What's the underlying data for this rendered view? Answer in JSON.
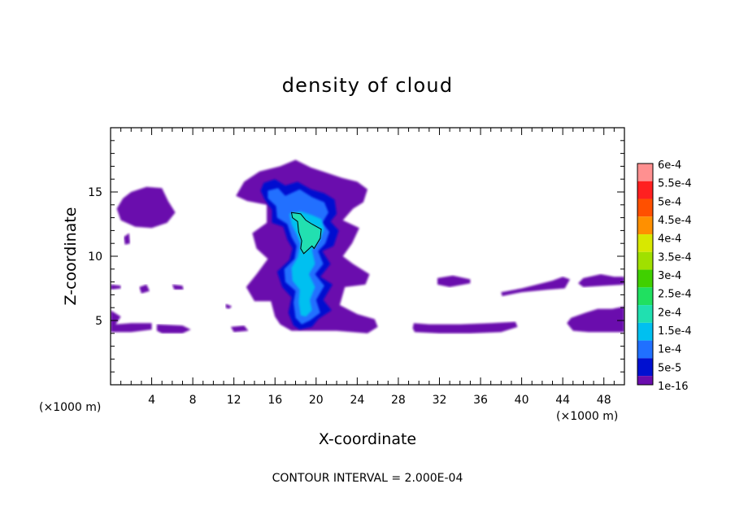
{
  "chart_data": {
    "type": "heatmap",
    "title": "density of cloud",
    "xlabel": "X-coordinate",
    "ylabel": "Z-coordinate",
    "x_unit_left": "(×1000 m)",
    "x_unit_right": "(×1000 m)",
    "footer": "CONTOUR INTERVAL = 2.000E-04",
    "xlim": [
      0,
      50
    ],
    "ylim": [
      0,
      20
    ],
    "x_ticks": [
      4,
      8,
      12,
      16,
      20,
      24,
      28,
      32,
      36,
      40,
      44,
      48
    ],
    "y_ticks": [
      5,
      10,
      15
    ],
    "grid": false,
    "colorbar": {
      "labels": [
        "6e-4",
        "5.5e-4",
        "5e-4",
        "4.5e-4",
        "4e-4",
        "3.5e-4",
        "3e-4",
        "2.5e-4",
        "2e-4",
        "1.5e-4",
        "1e-4",
        "5e-5",
        "1e-16"
      ],
      "colors": [
        "#ff9090",
        "#ff2020",
        "#ff5000",
        "#ff9000",
        "#d8e800",
        "#a0e000",
        "#40d000",
        "#20e060",
        "#20e0b0",
        "#00c0f0",
        "#2070ff",
        "#0010d0",
        "#6a0dad"
      ]
    },
    "regions": [
      {
        "level": "1e-16",
        "description": "purple low-density cloud patches",
        "points": [
          [
            1.2,
            14.5
          ],
          [
            2,
            15
          ],
          [
            3.5,
            15.4
          ],
          [
            5,
            15.3
          ],
          [
            5.6,
            14.3
          ],
          [
            6.3,
            13.4
          ],
          [
            5.5,
            12.6
          ],
          [
            4,
            12.2
          ],
          [
            2.4,
            12.3
          ],
          [
            1,
            12.8
          ],
          [
            0.6,
            13.7
          ]
        ]
      },
      {
        "level": "1e-16",
        "points": [
          [
            12.2,
            14.7
          ],
          [
            13,
            15.8
          ],
          [
            14.5,
            16.6
          ],
          [
            16.5,
            17
          ],
          [
            18,
            17.5
          ],
          [
            19.5,
            16.9
          ],
          [
            21,
            16.5
          ],
          [
            22.5,
            16.1
          ],
          [
            24,
            15.8
          ],
          [
            25,
            15.2
          ],
          [
            24.6,
            14.2
          ],
          [
            23.6,
            13.7
          ],
          [
            22.6,
            12.8
          ],
          [
            24.2,
            12.2
          ],
          [
            23.5,
            11
          ],
          [
            22.6,
            10
          ],
          [
            23.6,
            9.4
          ],
          [
            25.2,
            8.6
          ],
          [
            24.8,
            7.8
          ],
          [
            22.8,
            7.6
          ],
          [
            22.3,
            6.2
          ],
          [
            24,
            5.5
          ],
          [
            25.7,
            5.1
          ],
          [
            26,
            4.5
          ],
          [
            25,
            4
          ],
          [
            22,
            4.2
          ],
          [
            20,
            4.2
          ],
          [
            17.6,
            4.2
          ],
          [
            16.5,
            4.7
          ],
          [
            16,
            5.3
          ],
          [
            15.6,
            6.5
          ],
          [
            14,
            6.5
          ],
          [
            13.2,
            7.6
          ],
          [
            14.2,
            8.6
          ],
          [
            15.3,
            9.8
          ],
          [
            14.2,
            10.6
          ],
          [
            13.8,
            11.8
          ],
          [
            15.2,
            12.6
          ],
          [
            15.2,
            14
          ],
          [
            13.3,
            14.3
          ]
        ]
      },
      {
        "level": "1e-16",
        "points": [
          [
            0,
            5.8
          ],
          [
            1,
            5.3
          ],
          [
            0.5,
            4.7
          ],
          [
            2,
            4.8
          ],
          [
            4,
            4.8
          ],
          [
            4,
            4.3
          ],
          [
            2,
            4.1
          ],
          [
            0,
            4.1
          ]
        ]
      },
      {
        "level": "1e-16",
        "points": [
          [
            4.5,
            4.7
          ],
          [
            7,
            4.6
          ],
          [
            7.8,
            4.3
          ],
          [
            7,
            4
          ],
          [
            5,
            4
          ],
          [
            4.5,
            4.2
          ]
        ]
      },
      {
        "level": "1e-16",
        "points": [
          [
            11.7,
            4.5
          ],
          [
            13,
            4.6
          ],
          [
            13.4,
            4.2
          ],
          [
            12,
            4.1
          ]
        ]
      },
      {
        "level": "1e-16",
        "points": [
          [
            29.5,
            4.8
          ],
          [
            31,
            4.7
          ],
          [
            34,
            4.7
          ],
          [
            37,
            4.8
          ],
          [
            39.4,
            4.9
          ],
          [
            39.6,
            4.5
          ],
          [
            38,
            4.1
          ],
          [
            35,
            4
          ],
          [
            32,
            4
          ],
          [
            29.6,
            4.1
          ],
          [
            29.4,
            4.4
          ]
        ]
      },
      {
        "level": "1e-16",
        "points": [
          [
            31.8,
            8.3
          ],
          [
            33.3,
            8.5
          ],
          [
            35,
            8.2
          ],
          [
            35,
            7.9
          ],
          [
            33,
            7.6
          ],
          [
            31.8,
            7.8
          ]
        ]
      },
      {
        "level": "1e-16",
        "points": [
          [
            38,
            7.2
          ],
          [
            40,
            7.5
          ],
          [
            41.5,
            7.8
          ],
          [
            43,
            8.1
          ],
          [
            44,
            8.4
          ],
          [
            44.7,
            8.2
          ],
          [
            44.2,
            7.5
          ],
          [
            42.5,
            7.4
          ],
          [
            40,
            7.2
          ],
          [
            38.1,
            6.9
          ]
        ]
      },
      {
        "level": "1e-16",
        "points": [
          [
            46,
            8.3
          ],
          [
            47.7,
            8.6
          ],
          [
            49,
            8.4
          ],
          [
            50,
            8.4
          ],
          [
            50,
            7.8
          ],
          [
            48,
            7.7
          ],
          [
            46,
            7.6
          ],
          [
            45.5,
            7.9
          ]
        ]
      },
      {
        "level": "1e-16",
        "points": [
          [
            44.8,
            5.2
          ],
          [
            46.2,
            5.6
          ],
          [
            47.4,
            5.9
          ],
          [
            48.8,
            5.9
          ],
          [
            50,
            6.1
          ],
          [
            50,
            4.1
          ],
          [
            48,
            4.1
          ],
          [
            46.5,
            4.1
          ],
          [
            45,
            4.2
          ],
          [
            44.4,
            4.8
          ]
        ]
      },
      {
        "level": "1e-16",
        "points": [
          [
            2.8,
            7.6
          ],
          [
            3.5,
            7.8
          ],
          [
            3.8,
            7.3
          ],
          [
            3,
            7.1
          ]
        ]
      },
      {
        "level": "1e-16",
        "points": [
          [
            1.3,
            11.5
          ],
          [
            1.8,
            11.8
          ],
          [
            1.9,
            11
          ],
          [
            1.4,
            10.9
          ]
        ]
      },
      {
        "level": "1e-16",
        "points": [
          [
            6,
            7.8
          ],
          [
            7,
            7.7
          ],
          [
            7.1,
            7.4
          ],
          [
            6.2,
            7.4
          ]
        ]
      },
      {
        "level": "1e-16",
        "points": [
          [
            0,
            7.8
          ],
          [
            1,
            7.7
          ],
          [
            1,
            7.5
          ],
          [
            0,
            7.4
          ]
        ]
      },
      {
        "level": "1e-16",
        "points": [
          [
            11.2,
            6.3
          ],
          [
            11.8,
            6.1
          ],
          [
            11.5,
            5.9
          ],
          [
            11.2,
            6
          ]
        ]
      },
      {
        "level": "5e-5",
        "description": "dark blue outer core",
        "points": [
          [
            14.9,
            15.7
          ],
          [
            16,
            16
          ],
          [
            17,
            15.5
          ],
          [
            18.2,
            15.8
          ],
          [
            19.5,
            15.2
          ],
          [
            20.8,
            14.9
          ],
          [
            21.8,
            14.4
          ],
          [
            22,
            13.3
          ],
          [
            21.4,
            12.7
          ],
          [
            22.2,
            12
          ],
          [
            21.7,
            10.8
          ],
          [
            20.6,
            10.4
          ],
          [
            21.4,
            9.4
          ],
          [
            20.4,
            8.4
          ],
          [
            21.6,
            7.8
          ],
          [
            20.7,
            6.6
          ],
          [
            21.5,
            5.8
          ],
          [
            20.2,
            5.1
          ],
          [
            19.6,
            4.5
          ],
          [
            18.4,
            4.3
          ],
          [
            17.8,
            4.6
          ],
          [
            17.3,
            5.6
          ],
          [
            17.6,
            6.8
          ],
          [
            16.7,
            7.6
          ],
          [
            16.2,
            8.8
          ],
          [
            17.4,
            9.7
          ],
          [
            17.7,
            10.6
          ],
          [
            17.2,
            11.3
          ],
          [
            16.8,
            12.3
          ],
          [
            15.7,
            12.6
          ],
          [
            15.7,
            13.6
          ],
          [
            15,
            14.4
          ],
          [
            14.6,
            15.1
          ]
        ]
      },
      {
        "level": "1e-4",
        "description": "blue core",
        "points": [
          [
            15.3,
            15.1
          ],
          [
            16.3,
            15.3
          ],
          [
            17,
            14.7
          ],
          [
            18.4,
            15.2
          ],
          [
            19.6,
            14.6
          ],
          [
            20.8,
            14.2
          ],
          [
            21.2,
            13.4
          ],
          [
            20.6,
            12.6
          ],
          [
            21.3,
            11.9
          ],
          [
            20.9,
            11
          ],
          [
            20.2,
            10.4
          ],
          [
            20.7,
            9.4
          ],
          [
            19.9,
            8.6
          ],
          [
            20.8,
            7.7
          ],
          [
            20,
            6.6
          ],
          [
            20.4,
            5.6
          ],
          [
            19.4,
            5
          ],
          [
            18.6,
            4.7
          ],
          [
            18,
            5.2
          ],
          [
            17.8,
            6.4
          ],
          [
            18,
            7.3
          ],
          [
            17,
            8
          ],
          [
            16.9,
            9
          ],
          [
            17.9,
            9.8
          ],
          [
            18.1,
            10.8
          ],
          [
            17.6,
            11.5
          ],
          [
            17.2,
            12.5
          ],
          [
            16.2,
            13
          ],
          [
            16.1,
            13.9
          ],
          [
            15.3,
            14.5
          ]
        ]
      },
      {
        "level": "1.5e-4",
        "description": "light blue core",
        "points": [
          [
            17.4,
            13.3
          ],
          [
            18.5,
            13.5
          ],
          [
            19.6,
            13.2
          ],
          [
            20.5,
            12.9
          ],
          [
            20.8,
            12.1
          ],
          [
            20.3,
            11.2
          ],
          [
            19.6,
            10.5
          ],
          [
            19.9,
            9.4
          ],
          [
            19.3,
            8.6
          ],
          [
            19.9,
            7.6
          ],
          [
            19.4,
            6.6
          ],
          [
            19.6,
            5.8
          ],
          [
            19,
            5.3
          ],
          [
            18.5,
            5.4
          ],
          [
            18.3,
            6.4
          ],
          [
            18.4,
            7.4
          ],
          [
            17.7,
            8.1
          ],
          [
            17.6,
            9.1
          ],
          [
            18.2,
            9.9
          ],
          [
            18.5,
            10.9
          ],
          [
            18.1,
            11.7
          ],
          [
            17.6,
            12.5
          ]
        ]
      },
      {
        "level": "2e-4",
        "description": "cyan-green interior bounded by contour line",
        "points": [
          [
            17.6,
            13.4
          ],
          [
            18.5,
            13.3
          ],
          [
            19,
            12.8
          ],
          [
            19.6,
            12.5
          ],
          [
            20.5,
            12.1
          ],
          [
            20.4,
            11.4
          ],
          [
            19.8,
            10.6
          ],
          [
            19.6,
            10.8
          ],
          [
            19.2,
            10.5
          ],
          [
            18.8,
            10.2
          ],
          [
            18.5,
            10.6
          ],
          [
            18.6,
            11.2
          ],
          [
            18.3,
            11.9
          ],
          [
            18.2,
            12.7
          ],
          [
            17.7,
            13
          ]
        ]
      }
    ]
  }
}
